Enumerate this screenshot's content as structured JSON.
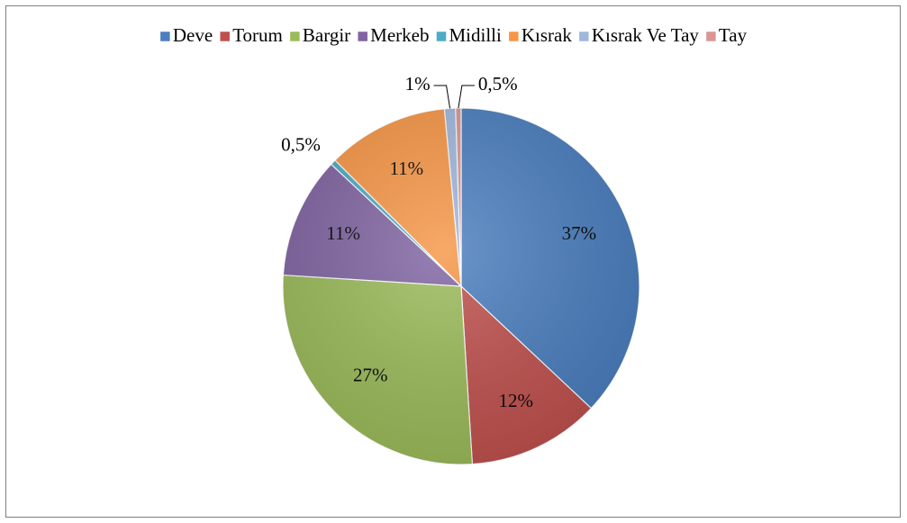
{
  "chart_data": {
    "type": "pie",
    "categories": [
      "Deve",
      "Torum",
      "Bargir",
      "Merkeb",
      "Midilli",
      "Kısrak",
      "Kısrak Ve Tay",
      "Tay"
    ],
    "values": [
      37,
      12,
      27,
      11,
      0.5,
      11,
      1,
      0.5
    ],
    "value_labels": [
      "37%",
      "12%",
      "27%",
      "11%",
      "0,5%",
      "11%",
      "1%",
      "0,5%"
    ],
    "colors": [
      "#4a7ebf",
      "#c0504d",
      "#9bbb59",
      "#8064a2",
      "#4bacc6",
      "#f79646",
      "#a0b7dc",
      "#d99694"
    ],
    "legend": "top"
  }
}
